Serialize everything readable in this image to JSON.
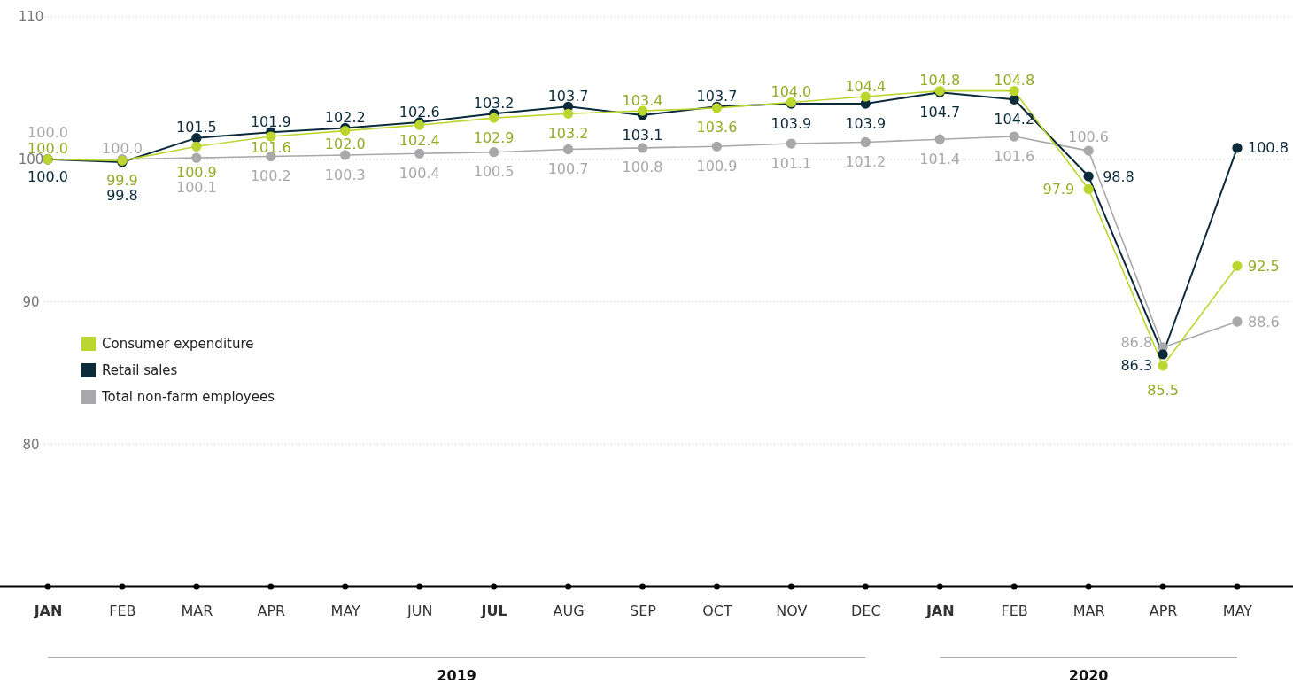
{
  "chart_data": {
    "type": "line",
    "categories": [
      "JAN",
      "FEB",
      "MAR",
      "APR",
      "MAY",
      "JUN",
      "JUL",
      "AUG",
      "SEP",
      "OCT",
      "NOV",
      "DEC",
      "JAN",
      "FEB",
      "MAR",
      "APR",
      "MAY"
    ],
    "series": [
      {
        "name": "Consumer expenditure",
        "color": "#bcd630",
        "values": [
          100.0,
          99.9,
          100.9,
          101.6,
          102.0,
          102.4,
          102.9,
          103.2,
          103.4,
          103.6,
          104.0,
          104.4,
          104.8,
          104.8,
          97.9,
          85.5,
          92.5
        ],
        "value_labels": [
          "100.0",
          "99.9",
          "100.9",
          "101.6",
          "102.0",
          "102.4",
          "102.9",
          "103.2",
          "103.4",
          "103.6",
          "104.0",
          "104.4",
          "104.8",
          "104.8",
          "97.9",
          "85.5",
          "92.5"
        ]
      },
      {
        "name": "Retail sales",
        "color": "#0b2a3a",
        "values": [
          100.0,
          99.8,
          101.5,
          101.9,
          102.2,
          102.6,
          103.2,
          103.7,
          103.1,
          103.7,
          103.9,
          103.9,
          104.7,
          104.2,
          98.8,
          86.3,
          100.8
        ],
        "value_labels": [
          "100.0",
          "99.8",
          "101.5",
          "101.9",
          "102.2",
          "102.6",
          "103.2",
          "103.7",
          "103.1",
          "103.7",
          "103.9",
          "103.9",
          "104.7",
          "104.2",
          "98.8",
          "86.3",
          "100.8"
        ]
      },
      {
        "name": "Total non-farm employees",
        "color": "#a8a8ab",
        "values": [
          100.0,
          100.0,
          100.1,
          100.2,
          100.3,
          100.4,
          100.5,
          100.7,
          100.8,
          100.9,
          101.1,
          101.2,
          101.4,
          101.6,
          100.6,
          86.8,
          88.6
        ],
        "value_labels": [
          "100.0",
          "100.0",
          "100.1",
          "100.2",
          "100.3",
          "100.4",
          "100.5",
          "100.7",
          "100.8",
          "100.9",
          "101.1",
          "101.2",
          "101.4",
          "101.6",
          "100.6",
          "86.8",
          "88.6"
        ]
      }
    ],
    "ylim": [
      70,
      110
    ],
    "yticks": [
      80,
      90,
      100,
      110
    ],
    "grid": "y",
    "legend": "left",
    "marker": "circle",
    "line_style": "solid",
    "data_labels": true,
    "annotations": [
      "2019",
      "2020"
    ]
  }
}
